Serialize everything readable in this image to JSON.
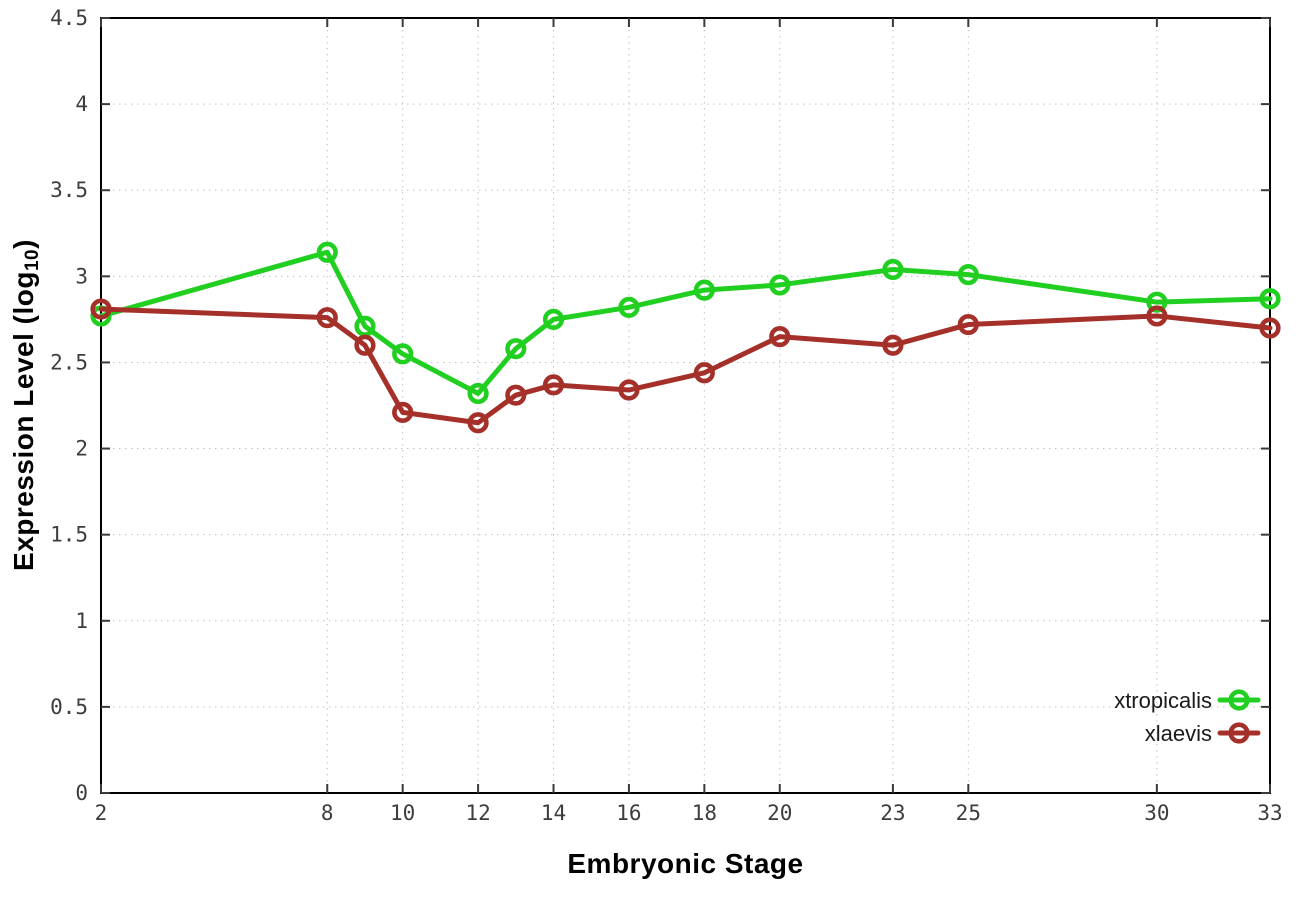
{
  "figure": {
    "background": "#ffffff",
    "border_color": "#000000",
    "grid_color": "#c2c2c2",
    "tick_mark_color": "#3a3a3a",
    "tick_label_color": "#3d3d3d",
    "axis_title_color": "#000000",
    "legend_text_color": "#1a1a1a"
  },
  "chart_data": {
    "type": "line",
    "title": "",
    "xlabel": "Embryonic Stage",
    "ylabel": {
      "text": "Expression Level (log",
      "sub": "10",
      "suffix": ")"
    },
    "x": [
      2,
      8,
      9,
      10,
      12,
      13,
      14,
      16,
      18,
      20,
      23,
      25,
      30,
      33
    ],
    "xticks": [
      2,
      8,
      10,
      12,
      14,
      16,
      18,
      20,
      23,
      25,
      30,
      33
    ],
    "xlim": [
      2,
      33
    ],
    "ylim": [
      0,
      4.5
    ],
    "ytick_values": [
      0,
      0.5,
      1,
      1.5,
      2,
      2.5,
      3,
      3.5,
      4,
      4.5
    ],
    "ytick_labels": [
      "0",
      "0.5",
      "1",
      "1.5",
      "2",
      "2.5",
      "3",
      "3.5",
      "4",
      "4.5"
    ],
    "grid": true,
    "grid_style": "dotted",
    "legend_position": "bottom-right",
    "marker": "open-circle",
    "series": [
      {
        "name": "xtropicalis",
        "color": "#21cf21",
        "values": [
          2.77,
          3.14,
          2.71,
          2.55,
          2.32,
          2.58,
          2.75,
          2.82,
          2.92,
          2.95,
          3.04,
          3.01,
          2.85,
          2.87
        ]
      },
      {
        "name": "xlaevis",
        "color": "#a5302a",
        "values": [
          2.81,
          2.76,
          2.6,
          2.21,
          2.15,
          2.31,
          2.37,
          2.34,
          2.44,
          2.65,
          2.6,
          2.72,
          2.77,
          2.7
        ]
      }
    ]
  }
}
